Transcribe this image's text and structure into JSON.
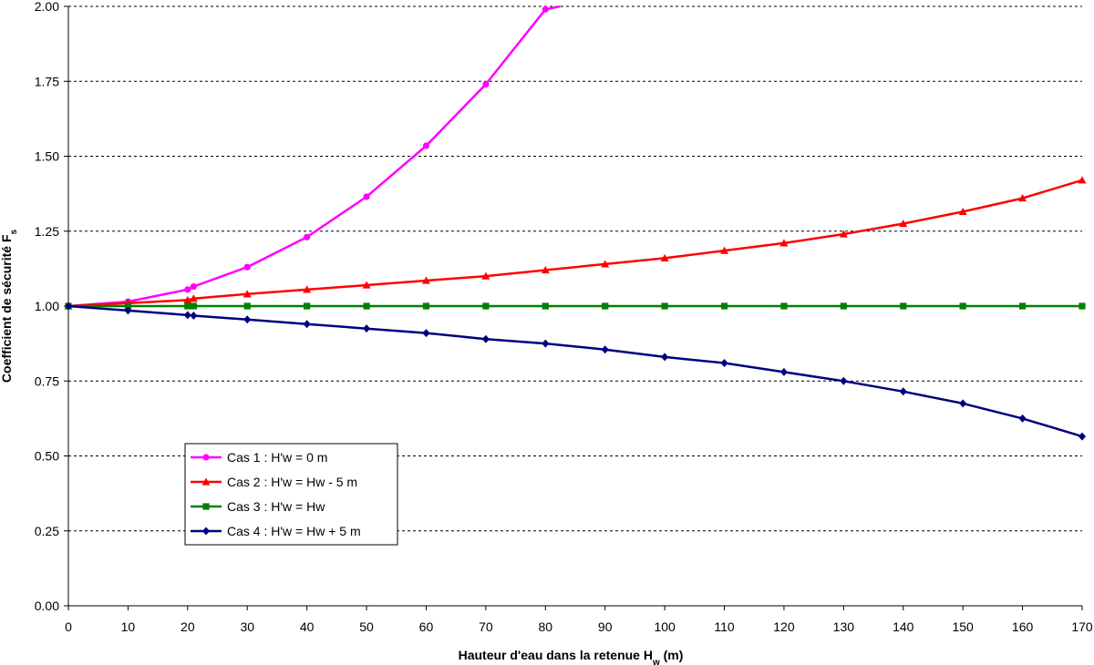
{
  "chart_data": {
    "type": "line",
    "title": "",
    "xlabel": "Hauteur d'eau dans la retenue H",
    "xlabel_sub": "w",
    "xlabel_tail": " (m)",
    "ylabel": "Coefficient de sécurité F",
    "ylabel_sub": "s",
    "xlim": [
      0,
      170
    ],
    "ylim": [
      0,
      2.0
    ],
    "x_ticks": [
      0,
      10,
      20,
      30,
      40,
      50,
      60,
      70,
      80,
      90,
      100,
      110,
      120,
      130,
      140,
      150,
      160,
      170
    ],
    "y_ticks": [
      0.0,
      0.25,
      0.5,
      0.75,
      1.0,
      1.25,
      1.5,
      1.75,
      2.0
    ],
    "y_tick_labels": [
      "0.00",
      "0.25",
      "0.50",
      "0.75",
      "1.00",
      "1.25",
      "1.50",
      "1.75",
      "2.00"
    ],
    "grid": "horizontal-dashed",
    "legend_position": "lower-left",
    "series": [
      {
        "name": "Cas 1 : H'w = 0 m",
        "color": "#ff00ff",
        "marker": "circle",
        "x": [
          0,
          10,
          20,
          21,
          30,
          40,
          50,
          60,
          70,
          80,
          82.5
        ],
        "y": [
          1.0,
          1.015,
          1.055,
          1.065,
          1.13,
          1.23,
          1.365,
          1.535,
          1.74,
          1.99,
          2.0
        ],
        "marker_x": [
          0,
          10,
          20,
          21,
          30,
          40,
          50,
          60,
          70,
          80
        ]
      },
      {
        "name": "Cas 2 : H'w = Hw - 5 m",
        "color": "#ff0000",
        "marker": "triangle",
        "x": [
          0,
          10,
          20,
          21,
          30,
          40,
          50,
          60,
          70,
          80,
          90,
          100,
          110,
          120,
          130,
          140,
          150,
          160,
          170
        ],
        "y": [
          1.0,
          1.01,
          1.02,
          1.025,
          1.04,
          1.055,
          1.07,
          1.085,
          1.1,
          1.12,
          1.14,
          1.16,
          1.185,
          1.21,
          1.24,
          1.275,
          1.315,
          1.36,
          1.42
        ]
      },
      {
        "name": "Cas 3 : H'w = Hw",
        "color": "#008000",
        "marker": "square",
        "x": [
          0,
          10,
          20,
          21,
          30,
          40,
          50,
          60,
          70,
          80,
          90,
          100,
          110,
          120,
          130,
          140,
          150,
          160,
          170
        ],
        "y": [
          1.0,
          1.0,
          1.0,
          1.0,
          1.0,
          1.0,
          1.0,
          1.0,
          1.0,
          1.0,
          1.0,
          1.0,
          1.0,
          1.0,
          1.0,
          1.0,
          1.0,
          1.0,
          1.0
        ]
      },
      {
        "name": "Cas 4 : H'w = Hw + 5 m",
        "color": "#000080",
        "marker": "diamond",
        "x": [
          0,
          10,
          20,
          21,
          30,
          40,
          50,
          60,
          70,
          80,
          90,
          100,
          110,
          120,
          130,
          140,
          150,
          160,
          170
        ],
        "y": [
          1.0,
          0.985,
          0.97,
          0.968,
          0.955,
          0.94,
          0.925,
          0.91,
          0.89,
          0.875,
          0.855,
          0.83,
          0.81,
          0.78,
          0.75,
          0.715,
          0.675,
          0.625,
          0.565
        ]
      }
    ]
  }
}
